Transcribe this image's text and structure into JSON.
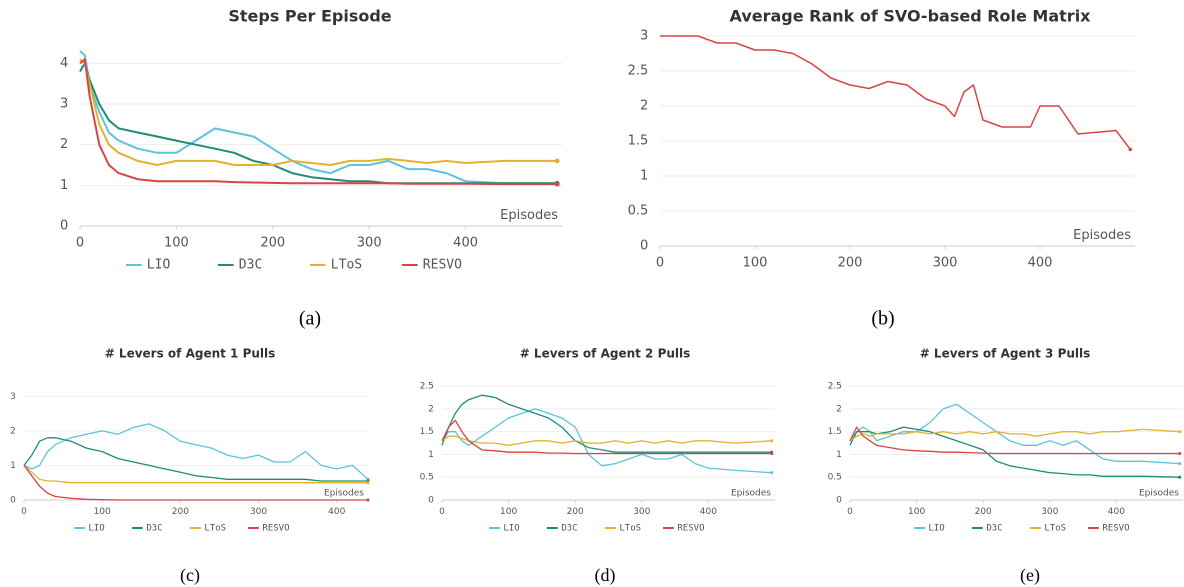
{
  "chart_data": [
    {
      "type": "line",
      "title": "Steps Per Episode",
      "xlabel": "Episodes",
      "caption": "(a)",
      "grid": true,
      "xlim": [
        0,
        500
      ],
      "ylim": [
        0,
        4.5
      ],
      "xticks": [
        0,
        100,
        200,
        300,
        400
      ],
      "yticks": [
        0,
        1,
        2,
        3,
        4
      ],
      "x": [
        0,
        5,
        10,
        20,
        30,
        40,
        60,
        80,
        100,
        120,
        140,
        160,
        180,
        200,
        220,
        240,
        260,
        280,
        300,
        320,
        340,
        360,
        380,
        400,
        440,
        495
      ],
      "series": [
        {
          "name": "LIO",
          "color": "#5bc4dc",
          "values": [
            4.3,
            4.2,
            3.5,
            2.8,
            2.3,
            2.1,
            1.9,
            1.8,
            1.8,
            2.1,
            2.4,
            2.3,
            2.2,
            1.9,
            1.6,
            1.4,
            1.3,
            1.5,
            1.5,
            1.6,
            1.4,
            1.4,
            1.3,
            1.1,
            1.05,
            1.05
          ]
        },
        {
          "name": "D3C",
          "color": "#1e8c78",
          "values": [
            3.8,
            4.0,
            3.6,
            3.0,
            2.6,
            2.4,
            2.3,
            2.2,
            2.1,
            2.0,
            1.9,
            1.8,
            1.6,
            1.5,
            1.3,
            1.2,
            1.15,
            1.1,
            1.1,
            1.05,
            1.05,
            1.05,
            1.05,
            1.05,
            1.05,
            1.05
          ]
        },
        {
          "name": "LToS",
          "color": "#e2b32c",
          "values": [
            4.1,
            4.0,
            3.5,
            2.5,
            2.0,
            1.8,
            1.6,
            1.5,
            1.6,
            1.6,
            1.6,
            1.5,
            1.5,
            1.5,
            1.6,
            1.55,
            1.5,
            1.6,
            1.6,
            1.65,
            1.6,
            1.55,
            1.6,
            1.55,
            1.6,
            1.6
          ]
        },
        {
          "name": "RESVO",
          "color": "#d84545",
          "values": [
            4.0,
            4.1,
            3.2,
            2.0,
            1.5,
            1.3,
            1.15,
            1.1,
            1.1,
            1.1,
            1.1,
            1.08,
            1.07,
            1.06,
            1.05,
            1.05,
            1.05,
            1.05,
            1.05,
            1.05,
            1.04,
            1.04,
            1.04,
            1.04,
            1.03,
            1.03
          ]
        }
      ]
    },
    {
      "type": "line",
      "title": "Average Rank of SVO-based Role Matrix",
      "xlabel": "Episodes",
      "caption": "(b)",
      "grid": true,
      "xlim": [
        0,
        500
      ],
      "ylim": [
        0,
        3
      ],
      "xticks": [
        0,
        100,
        200,
        300,
        400
      ],
      "yticks": [
        0,
        0.5,
        1,
        1.5,
        2,
        2.5,
        3
      ],
      "x": [
        0,
        40,
        60,
        80,
        100,
        120,
        140,
        160,
        180,
        200,
        220,
        240,
        260,
        280,
        300,
        310,
        320,
        330,
        340,
        360,
        390,
        400,
        420,
        440,
        480,
        495
      ],
      "color": "#d84545",
      "values": [
        3,
        3,
        2.9,
        2.9,
        2.8,
        2.8,
        2.75,
        2.6,
        2.4,
        2.3,
        2.25,
        2.35,
        2.3,
        2.1,
        2.0,
        1.85,
        2.2,
        2.3,
        1.8,
        1.7,
        1.7,
        2.0,
        2.0,
        1.6,
        1.65,
        1.38
      ]
    },
    {
      "type": "line",
      "title": "# Levers of Agent 1 Pulls",
      "xlabel": "Episodes",
      "caption": "(c)",
      "grid": true,
      "xlim": [
        0,
        440
      ],
      "ylim": [
        0,
        3.5
      ],
      "xticks": [
        0,
        100,
        200,
        300,
        400
      ],
      "yticks": [
        0,
        1,
        2,
        3
      ],
      "x": [
        0,
        10,
        20,
        30,
        40,
        60,
        80,
        100,
        120,
        140,
        160,
        180,
        200,
        220,
        240,
        260,
        280,
        300,
        320,
        340,
        360,
        380,
        400,
        420,
        440
      ],
      "series": [
        {
          "name": "LIO",
          "color": "#5bc4dc",
          "values": [
            1.0,
            0.9,
            1.0,
            1.4,
            1.6,
            1.8,
            1.9,
            2.0,
            1.9,
            2.1,
            2.2,
            2.0,
            1.7,
            1.6,
            1.5,
            1.3,
            1.2,
            1.3,
            1.1,
            1.1,
            1.4,
            1.0,
            0.9,
            1.0,
            0.6
          ]
        },
        {
          "name": "D3C",
          "color": "#1e8c78",
          "values": [
            1.0,
            1.3,
            1.7,
            1.8,
            1.8,
            1.7,
            1.5,
            1.4,
            1.2,
            1.1,
            1.0,
            0.9,
            0.8,
            0.7,
            0.65,
            0.6,
            0.6,
            0.6,
            0.6,
            0.6,
            0.6,
            0.55,
            0.55,
            0.55,
            0.55
          ]
        },
        {
          "name": "LToS",
          "color": "#e2b32c",
          "values": [
            1.0,
            0.8,
            0.6,
            0.55,
            0.55,
            0.5,
            0.5,
            0.5,
            0.5,
            0.5,
            0.5,
            0.5,
            0.5,
            0.5,
            0.5,
            0.5,
            0.5,
            0.5,
            0.5,
            0.5,
            0.5,
            0.5,
            0.5,
            0.5,
            0.5
          ]
        },
        {
          "name": "RESVO",
          "color": "#d84545",
          "values": [
            1.0,
            0.7,
            0.4,
            0.2,
            0.1,
            0.05,
            0.02,
            0.01,
            0,
            0,
            0,
            0,
            0,
            0,
            0,
            0,
            0,
            0,
            0,
            0,
            0,
            0,
            0,
            0,
            0
          ]
        }
      ]
    },
    {
      "type": "line",
      "title": "# Levers of Agent 2 Pulls",
      "xlabel": "Episodes",
      "caption": "(d)",
      "grid": true,
      "xlim": [
        0,
        500
      ],
      "ylim": [
        0,
        2.7
      ],
      "xticks": [
        0,
        100,
        200,
        300,
        400
      ],
      "yticks": [
        0,
        0.5,
        1,
        1.5,
        2,
        2.5
      ],
      "x": [
        0,
        10,
        20,
        30,
        40,
        60,
        80,
        100,
        120,
        140,
        160,
        180,
        200,
        220,
        240,
        260,
        280,
        300,
        320,
        340,
        360,
        380,
        400,
        440,
        495
      ],
      "series": [
        {
          "name": "LIO",
          "color": "#5bc4dc",
          "values": [
            1.3,
            1.5,
            1.5,
            1.3,
            1.2,
            1.4,
            1.6,
            1.8,
            1.9,
            2.0,
            1.9,
            1.8,
            1.6,
            1.0,
            0.75,
            0.8,
            0.9,
            1.0,
            0.9,
            0.9,
            1.0,
            0.8,
            0.7,
            0.65,
            0.6
          ]
        },
        {
          "name": "D3C",
          "color": "#1e8c78",
          "values": [
            1.2,
            1.6,
            1.9,
            2.1,
            2.2,
            2.3,
            2.25,
            2.1,
            2.0,
            1.9,
            1.8,
            1.6,
            1.3,
            1.15,
            1.1,
            1.05,
            1.05,
            1.05,
            1.05,
            1.05,
            1.05,
            1.05,
            1.05,
            1.05,
            1.05
          ]
        },
        {
          "name": "LToS",
          "color": "#e2b32c",
          "values": [
            1.3,
            1.4,
            1.4,
            1.35,
            1.3,
            1.25,
            1.25,
            1.2,
            1.25,
            1.3,
            1.3,
            1.25,
            1.3,
            1.25,
            1.25,
            1.3,
            1.25,
            1.3,
            1.25,
            1.3,
            1.25,
            1.3,
            1.3,
            1.25,
            1.3
          ]
        },
        {
          "name": "RESVO",
          "color": "#d84545",
          "values": [
            1.3,
            1.6,
            1.75,
            1.5,
            1.3,
            1.1,
            1.08,
            1.05,
            1.05,
            1.05,
            1.03,
            1.03,
            1.02,
            1.02,
            1.02,
            1.02,
            1.02,
            1.02,
            1.02,
            1.02,
            1.02,
            1.02,
            1.02,
            1.02,
            1.02
          ]
        }
      ]
    },
    {
      "type": "line",
      "title": "# Levers of Agent 3 Pulls",
      "xlabel": "Episodes",
      "caption": "(e)",
      "grid": true,
      "xlim": [
        0,
        500
      ],
      "ylim": [
        0,
        2.7
      ],
      "xticks": [
        0,
        100,
        200,
        300,
        400
      ],
      "yticks": [
        0,
        0.5,
        1,
        1.5,
        2,
        2.5
      ],
      "x": [
        0,
        10,
        20,
        30,
        40,
        60,
        80,
        100,
        120,
        140,
        160,
        180,
        200,
        220,
        240,
        260,
        280,
        300,
        320,
        340,
        360,
        380,
        400,
        440,
        495
      ],
      "series": [
        {
          "name": "LIO",
          "color": "#5bc4dc",
          "values": [
            1.3,
            1.5,
            1.6,
            1.5,
            1.3,
            1.4,
            1.5,
            1.5,
            1.7,
            2.0,
            2.1,
            1.9,
            1.7,
            1.5,
            1.3,
            1.2,
            1.2,
            1.3,
            1.2,
            1.3,
            1.1,
            0.9,
            0.85,
            0.85,
            0.8
          ]
        },
        {
          "name": "D3C",
          "color": "#1e8c78",
          "values": [
            1.2,
            1.5,
            1.5,
            1.5,
            1.45,
            1.5,
            1.6,
            1.55,
            1.5,
            1.4,
            1.3,
            1.2,
            1.1,
            0.85,
            0.75,
            0.7,
            0.65,
            0.6,
            0.58,
            0.55,
            0.55,
            0.52,
            0.52,
            0.52,
            0.5
          ]
        },
        {
          "name": "LToS",
          "color": "#e2b32c",
          "values": [
            1.3,
            1.4,
            1.45,
            1.4,
            1.45,
            1.45,
            1.45,
            1.5,
            1.45,
            1.5,
            1.45,
            1.5,
            1.45,
            1.5,
            1.45,
            1.45,
            1.4,
            1.45,
            1.5,
            1.5,
            1.45,
            1.5,
            1.5,
            1.55,
            1.5
          ]
        },
        {
          "name": "RESVO",
          "color": "#d84545",
          "values": [
            1.3,
            1.6,
            1.4,
            1.3,
            1.2,
            1.15,
            1.1,
            1.08,
            1.07,
            1.05,
            1.05,
            1.04,
            1.03,
            1.02,
            1.02,
            1.02,
            1.02,
            1.02,
            1.02,
            1.02,
            1.02,
            1.02,
            1.02,
            1.02,
            1.02
          ]
        }
      ]
    }
  ]
}
